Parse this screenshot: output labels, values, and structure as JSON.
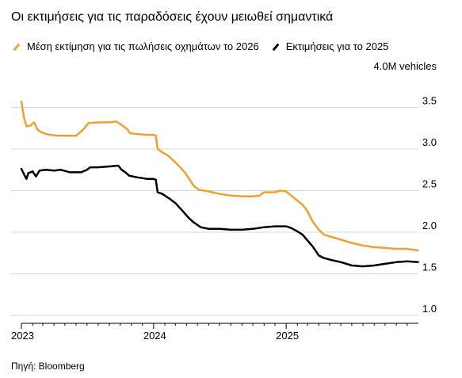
{
  "title": "Οι εκτιμήσεις για τις παραδόσεις έχουν μειωθεί σημαντικά",
  "source": "Πηγή: Bloomberg",
  "colors": {
    "series_2026": "#f0a030",
    "series_2025": "#000000",
    "grid": "#d9d9d9"
  },
  "chart_data": {
    "type": "line",
    "unit_label": "4.0M vehicles",
    "ylim": [
      1.0,
      4.0
    ],
    "yticks": [
      {
        "value": 3.5,
        "label": "3.5"
      },
      {
        "value": 3.0,
        "label": "3.0"
      },
      {
        "value": 2.5,
        "label": "2.5"
      },
      {
        "value": 2.0,
        "label": "2.0"
      },
      {
        "value": 1.5,
        "label": "1.5"
      },
      {
        "value": 1.0,
        "label": "1.0"
      }
    ],
    "xlim": [
      "2023-01-01",
      "2026-01-01"
    ],
    "xticks": [
      {
        "value": "2023-01-01",
        "label": "2023"
      },
      {
        "value": "2024-01-01",
        "label": "2024"
      },
      {
        "value": "2025-01-01",
        "label": "2025"
      }
    ],
    "grid": true,
    "legend_position": "top",
    "series": [
      {
        "name": "Μέση εκτίμηση για τις πωλήσεις οχημάτων το 2026",
        "color": "#f0a030",
        "points": [
          [
            "2023-01-01",
            3.57
          ],
          [
            "2023-01-08",
            3.38
          ],
          [
            "2023-01-15",
            3.27
          ],
          [
            "2023-01-25",
            3.28
          ],
          [
            "2023-02-05",
            3.32
          ],
          [
            "2023-02-15",
            3.23
          ],
          [
            "2023-02-25",
            3.2
          ],
          [
            "2023-03-10",
            3.18
          ],
          [
            "2023-03-25",
            3.17
          ],
          [
            "2023-04-10",
            3.16
          ],
          [
            "2023-05-01",
            3.16
          ],
          [
            "2023-06-01",
            3.16
          ],
          [
            "2023-06-20",
            3.23
          ],
          [
            "2023-07-05",
            3.31
          ],
          [
            "2023-08-01",
            3.32
          ],
          [
            "2023-09-01",
            3.32
          ],
          [
            "2023-09-20",
            3.33
          ],
          [
            "2023-10-01",
            3.3
          ],
          [
            "2023-10-10",
            3.27
          ],
          [
            "2023-10-20",
            3.24
          ],
          [
            "2023-10-28",
            3.19
          ],
          [
            "2023-11-15",
            3.18
          ],
          [
            "2023-12-15",
            3.17
          ],
          [
            "2024-01-01",
            3.17
          ],
          [
            "2024-01-07",
            3.16
          ],
          [
            "2024-01-12",
            3.0
          ],
          [
            "2024-01-25",
            2.96
          ],
          [
            "2024-02-10",
            2.92
          ],
          [
            "2024-02-25",
            2.86
          ],
          [
            "2024-03-10",
            2.8
          ],
          [
            "2024-03-25",
            2.73
          ],
          [
            "2024-04-10",
            2.63
          ],
          [
            "2024-04-20",
            2.56
          ],
          [
            "2024-05-05",
            2.51
          ],
          [
            "2024-06-01",
            2.49
          ],
          [
            "2024-07-01",
            2.46
          ],
          [
            "2024-08-01",
            2.44
          ],
          [
            "2024-09-01",
            2.43
          ],
          [
            "2024-10-01",
            2.43
          ],
          [
            "2024-10-20",
            2.44
          ],
          [
            "2024-11-01",
            2.48
          ],
          [
            "2024-12-01",
            2.48
          ],
          [
            "2024-12-15",
            2.5
          ],
          [
            "2025-01-01",
            2.49
          ],
          [
            "2025-01-15",
            2.44
          ],
          [
            "2025-02-01",
            2.38
          ],
          [
            "2025-02-15",
            2.33
          ],
          [
            "2025-03-01",
            2.25
          ],
          [
            "2025-03-15",
            2.13
          ],
          [
            "2025-04-01",
            2.03
          ],
          [
            "2025-04-15",
            1.97
          ],
          [
            "2025-05-01",
            1.95
          ],
          [
            "2025-06-01",
            1.91
          ],
          [
            "2025-07-01",
            1.87
          ],
          [
            "2025-08-01",
            1.84
          ],
          [
            "2025-09-01",
            1.82
          ],
          [
            "2025-10-01",
            1.81
          ],
          [
            "2025-11-01",
            1.8
          ],
          [
            "2025-12-01",
            1.8
          ],
          [
            "2025-12-31",
            1.78
          ]
        ]
      },
      {
        "name": "Εκτιμήσεις για το 2025",
        "color": "#000000",
        "points": [
          [
            "2023-01-01",
            2.76
          ],
          [
            "2023-01-10",
            2.68
          ],
          [
            "2023-01-15",
            2.64
          ],
          [
            "2023-01-20",
            2.71
          ],
          [
            "2023-02-01",
            2.73
          ],
          [
            "2023-02-10",
            2.67
          ],
          [
            "2023-02-20",
            2.74
          ],
          [
            "2023-03-10",
            2.75
          ],
          [
            "2023-04-01",
            2.74
          ],
          [
            "2023-04-20",
            2.75
          ],
          [
            "2023-05-15",
            2.72
          ],
          [
            "2023-06-15",
            2.72
          ],
          [
            "2023-07-01",
            2.75
          ],
          [
            "2023-07-10",
            2.78
          ],
          [
            "2023-08-01",
            2.78
          ],
          [
            "2023-09-01",
            2.79
          ],
          [
            "2023-09-25",
            2.8
          ],
          [
            "2023-10-05",
            2.75
          ],
          [
            "2023-10-15",
            2.72
          ],
          [
            "2023-10-25",
            2.68
          ],
          [
            "2023-11-15",
            2.66
          ],
          [
            "2023-12-15",
            2.64
          ],
          [
            "2024-01-01",
            2.64
          ],
          [
            "2024-01-07",
            2.63
          ],
          [
            "2024-01-12",
            2.48
          ],
          [
            "2024-01-25",
            2.46
          ],
          [
            "2024-02-15",
            2.4
          ],
          [
            "2024-03-01",
            2.35
          ],
          [
            "2024-03-20",
            2.26
          ],
          [
            "2024-04-05",
            2.18
          ],
          [
            "2024-04-20",
            2.12
          ],
          [
            "2024-05-10",
            2.06
          ],
          [
            "2024-06-01",
            2.04
          ],
          [
            "2024-07-01",
            2.04
          ],
          [
            "2024-08-01",
            2.03
          ],
          [
            "2024-09-01",
            2.03
          ],
          [
            "2024-10-01",
            2.04
          ],
          [
            "2024-11-01",
            2.06
          ],
          [
            "2024-12-01",
            2.07
          ],
          [
            "2025-01-01",
            2.07
          ],
          [
            "2025-01-15",
            2.05
          ],
          [
            "2025-02-01",
            2.01
          ],
          [
            "2025-02-15",
            1.97
          ],
          [
            "2025-03-01",
            1.9
          ],
          [
            "2025-03-15",
            1.83
          ],
          [
            "2025-04-01",
            1.72
          ],
          [
            "2025-04-15",
            1.69
          ],
          [
            "2025-05-01",
            1.67
          ],
          [
            "2025-06-01",
            1.64
          ],
          [
            "2025-07-01",
            1.6
          ],
          [
            "2025-08-01",
            1.59
          ],
          [
            "2025-09-01",
            1.6
          ],
          [
            "2025-10-01",
            1.62
          ],
          [
            "2025-11-01",
            1.64
          ],
          [
            "2025-12-01",
            1.65
          ],
          [
            "2025-12-31",
            1.64
          ]
        ]
      }
    ]
  }
}
